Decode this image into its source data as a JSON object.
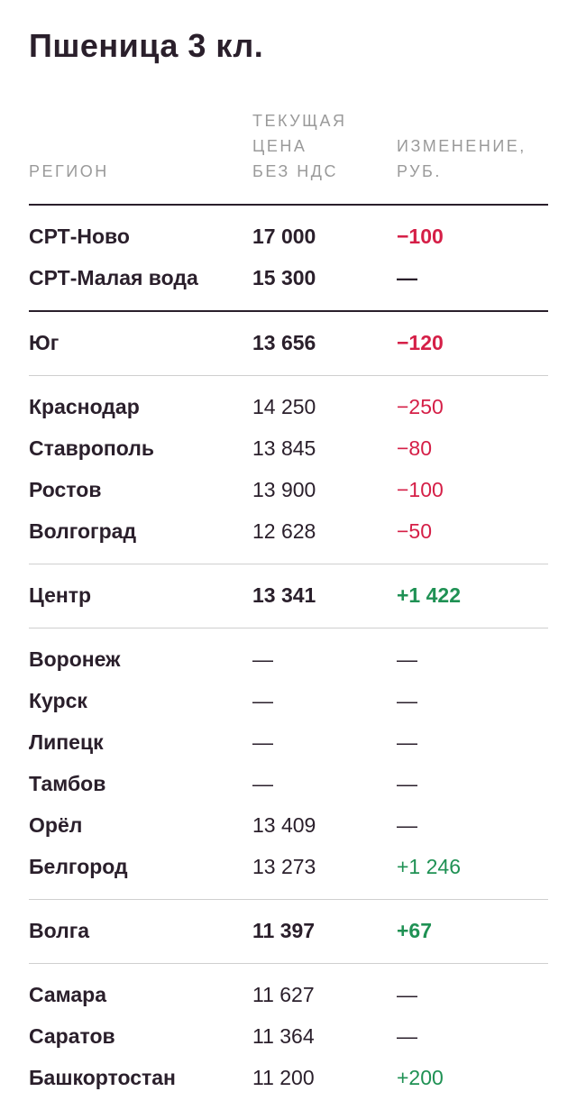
{
  "title": "Пшеница 3 кл.",
  "header": {
    "region": "РЕГИОН",
    "price_lines": [
      "ТЕКУЩАЯ",
      "ЦЕНА",
      "БЕЗ НДС"
    ],
    "change_lines": [
      "ИЗМЕНЕНИЕ,",
      "РУБ."
    ]
  },
  "colors": {
    "negative": "#d51f47",
    "positive": "#1f9154",
    "text": "#2a1f2b"
  },
  "groups": [
    {
      "rows": [
        {
          "region": "СРТ-Ново",
          "price": "17 000",
          "change": "−100",
          "trend": "neg",
          "bold": true
        },
        {
          "region": "СРТ-Малая вода",
          "price": "15 300",
          "change": "—",
          "trend": "none",
          "bold": true
        }
      ]
    },
    {
      "rows": [
        {
          "region": "Юг",
          "price": "13 656",
          "change": "−120",
          "trend": "neg",
          "bold": true
        }
      ]
    },
    {
      "rows": [
        {
          "region": "Краснодар",
          "price": "14 250",
          "change": "−250",
          "trend": "neg",
          "bold": false
        },
        {
          "region": "Ставрополь",
          "price": "13 845",
          "change": "−80",
          "trend": "neg",
          "bold": false
        },
        {
          "region": "Ростов",
          "price": "13 900",
          "change": "−100",
          "trend": "neg",
          "bold": false
        },
        {
          "region": "Волгоград",
          "price": "12 628",
          "change": "−50",
          "trend": "neg",
          "bold": false
        }
      ]
    },
    {
      "rows": [
        {
          "region": "Центр",
          "price": "13 341",
          "change": "+1 422",
          "trend": "pos",
          "bold": true
        }
      ]
    },
    {
      "rows": [
        {
          "region": "Воронеж",
          "price": "—",
          "change": "—",
          "trend": "none",
          "bold": false
        },
        {
          "region": "Курск",
          "price": "—",
          "change": "—",
          "trend": "none",
          "bold": false
        },
        {
          "region": "Липецк",
          "price": "—",
          "change": "—",
          "trend": "none",
          "bold": false
        },
        {
          "region": "Тамбов",
          "price": "—",
          "change": "—",
          "trend": "none",
          "bold": false
        },
        {
          "region": "Орёл",
          "price": "13 409",
          "change": "—",
          "trend": "none",
          "bold": false
        },
        {
          "region": "Белгород",
          "price": "13 273",
          "change": "+1 246",
          "trend": "pos",
          "bold": false
        }
      ]
    },
    {
      "rows": [
        {
          "region": "Волга",
          "price": "11 397",
          "change": "+67",
          "trend": "pos",
          "bold": true
        }
      ]
    },
    {
      "rows": [
        {
          "region": "Самара",
          "price": "11 627",
          "change": "—",
          "trend": "none",
          "bold": false
        },
        {
          "region": "Саратов",
          "price": "11 364",
          "change": "—",
          "trend": "none",
          "bold": false
        },
        {
          "region": "Башкортостан",
          "price": "11 200",
          "change": "+200",
          "trend": "pos",
          "bold": false
        }
      ]
    }
  ]
}
